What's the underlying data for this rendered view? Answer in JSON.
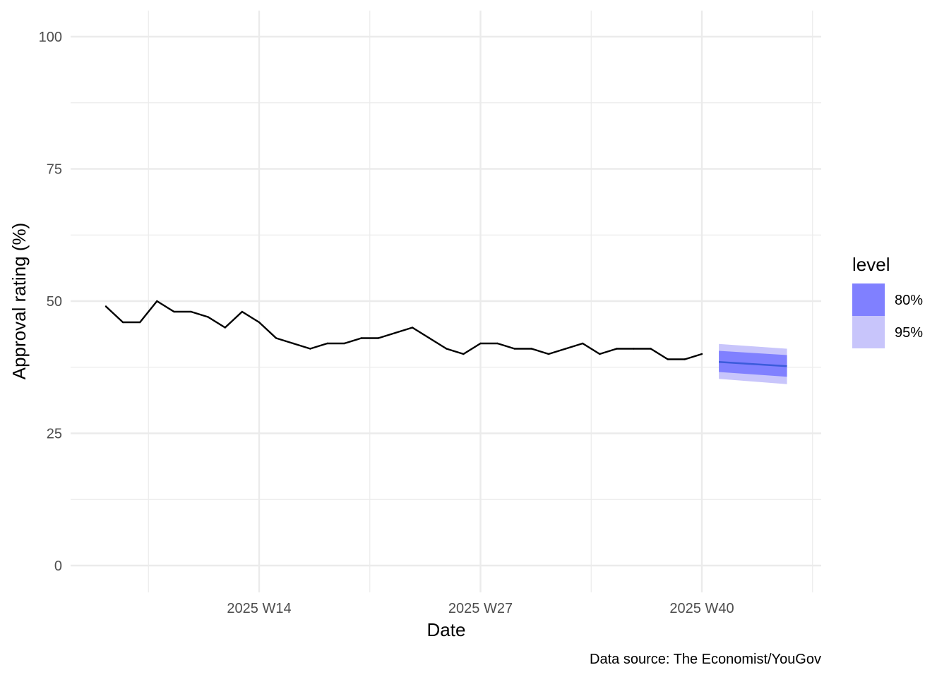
{
  "chart_data": {
    "type": "line",
    "title": "",
    "xlabel": "Date",
    "ylabel": "Approval rating (%)",
    "caption": "Data source: The Economist/YouGov",
    "ylim": [
      0,
      100
    ],
    "y_ticks": [
      0,
      25,
      50,
      75,
      100
    ],
    "x_ticks": [
      {
        "week": 14,
        "label": "2025 W14"
      },
      {
        "week": 27,
        "label": "2025 W27"
      },
      {
        "week": 40,
        "label": "2025 W40"
      }
    ],
    "grid": true,
    "series": [
      {
        "x": [
          5,
          6,
          7,
          8,
          9,
          10,
          11,
          12,
          13,
          14,
          15,
          16,
          17,
          18,
          19,
          20,
          21,
          22,
          23,
          24,
          25,
          26,
          27,
          28,
          29,
          30,
          31,
          32,
          33,
          34,
          35,
          36,
          37,
          38,
          39,
          40
        ],
        "values": [
          49,
          46,
          46,
          50,
          48,
          48,
          47,
          45,
          48,
          46,
          43,
          42,
          41,
          42,
          42,
          43,
          43,
          44,
          45,
          43,
          41,
          40,
          42,
          42,
          41,
          41,
          40,
          41,
          42,
          40,
          41,
          41,
          41,
          39,
          39,
          40
        ],
        "color": "#000000"
      }
    ],
    "forecast": {
      "x": [
        41,
        45
      ],
      "mean": [
        38.5,
        37.7
      ],
      "lo80": [
        36.6,
        35.7
      ],
      "hi80": [
        40.6,
        39.8
      ],
      "lo95": [
        35.3,
        34.3
      ],
      "hi95": [
        41.9,
        41.0
      ],
      "mean_color": "#3b5bdb",
      "color_80": "#8080ff",
      "color_95": "#c8c5fb"
    },
    "legend": {
      "title": "level",
      "position": "right",
      "entries": [
        {
          "label": "80%",
          "color": "#8080ff"
        },
        {
          "label": "95%",
          "color": "#c8c5fb"
        }
      ]
    }
  }
}
